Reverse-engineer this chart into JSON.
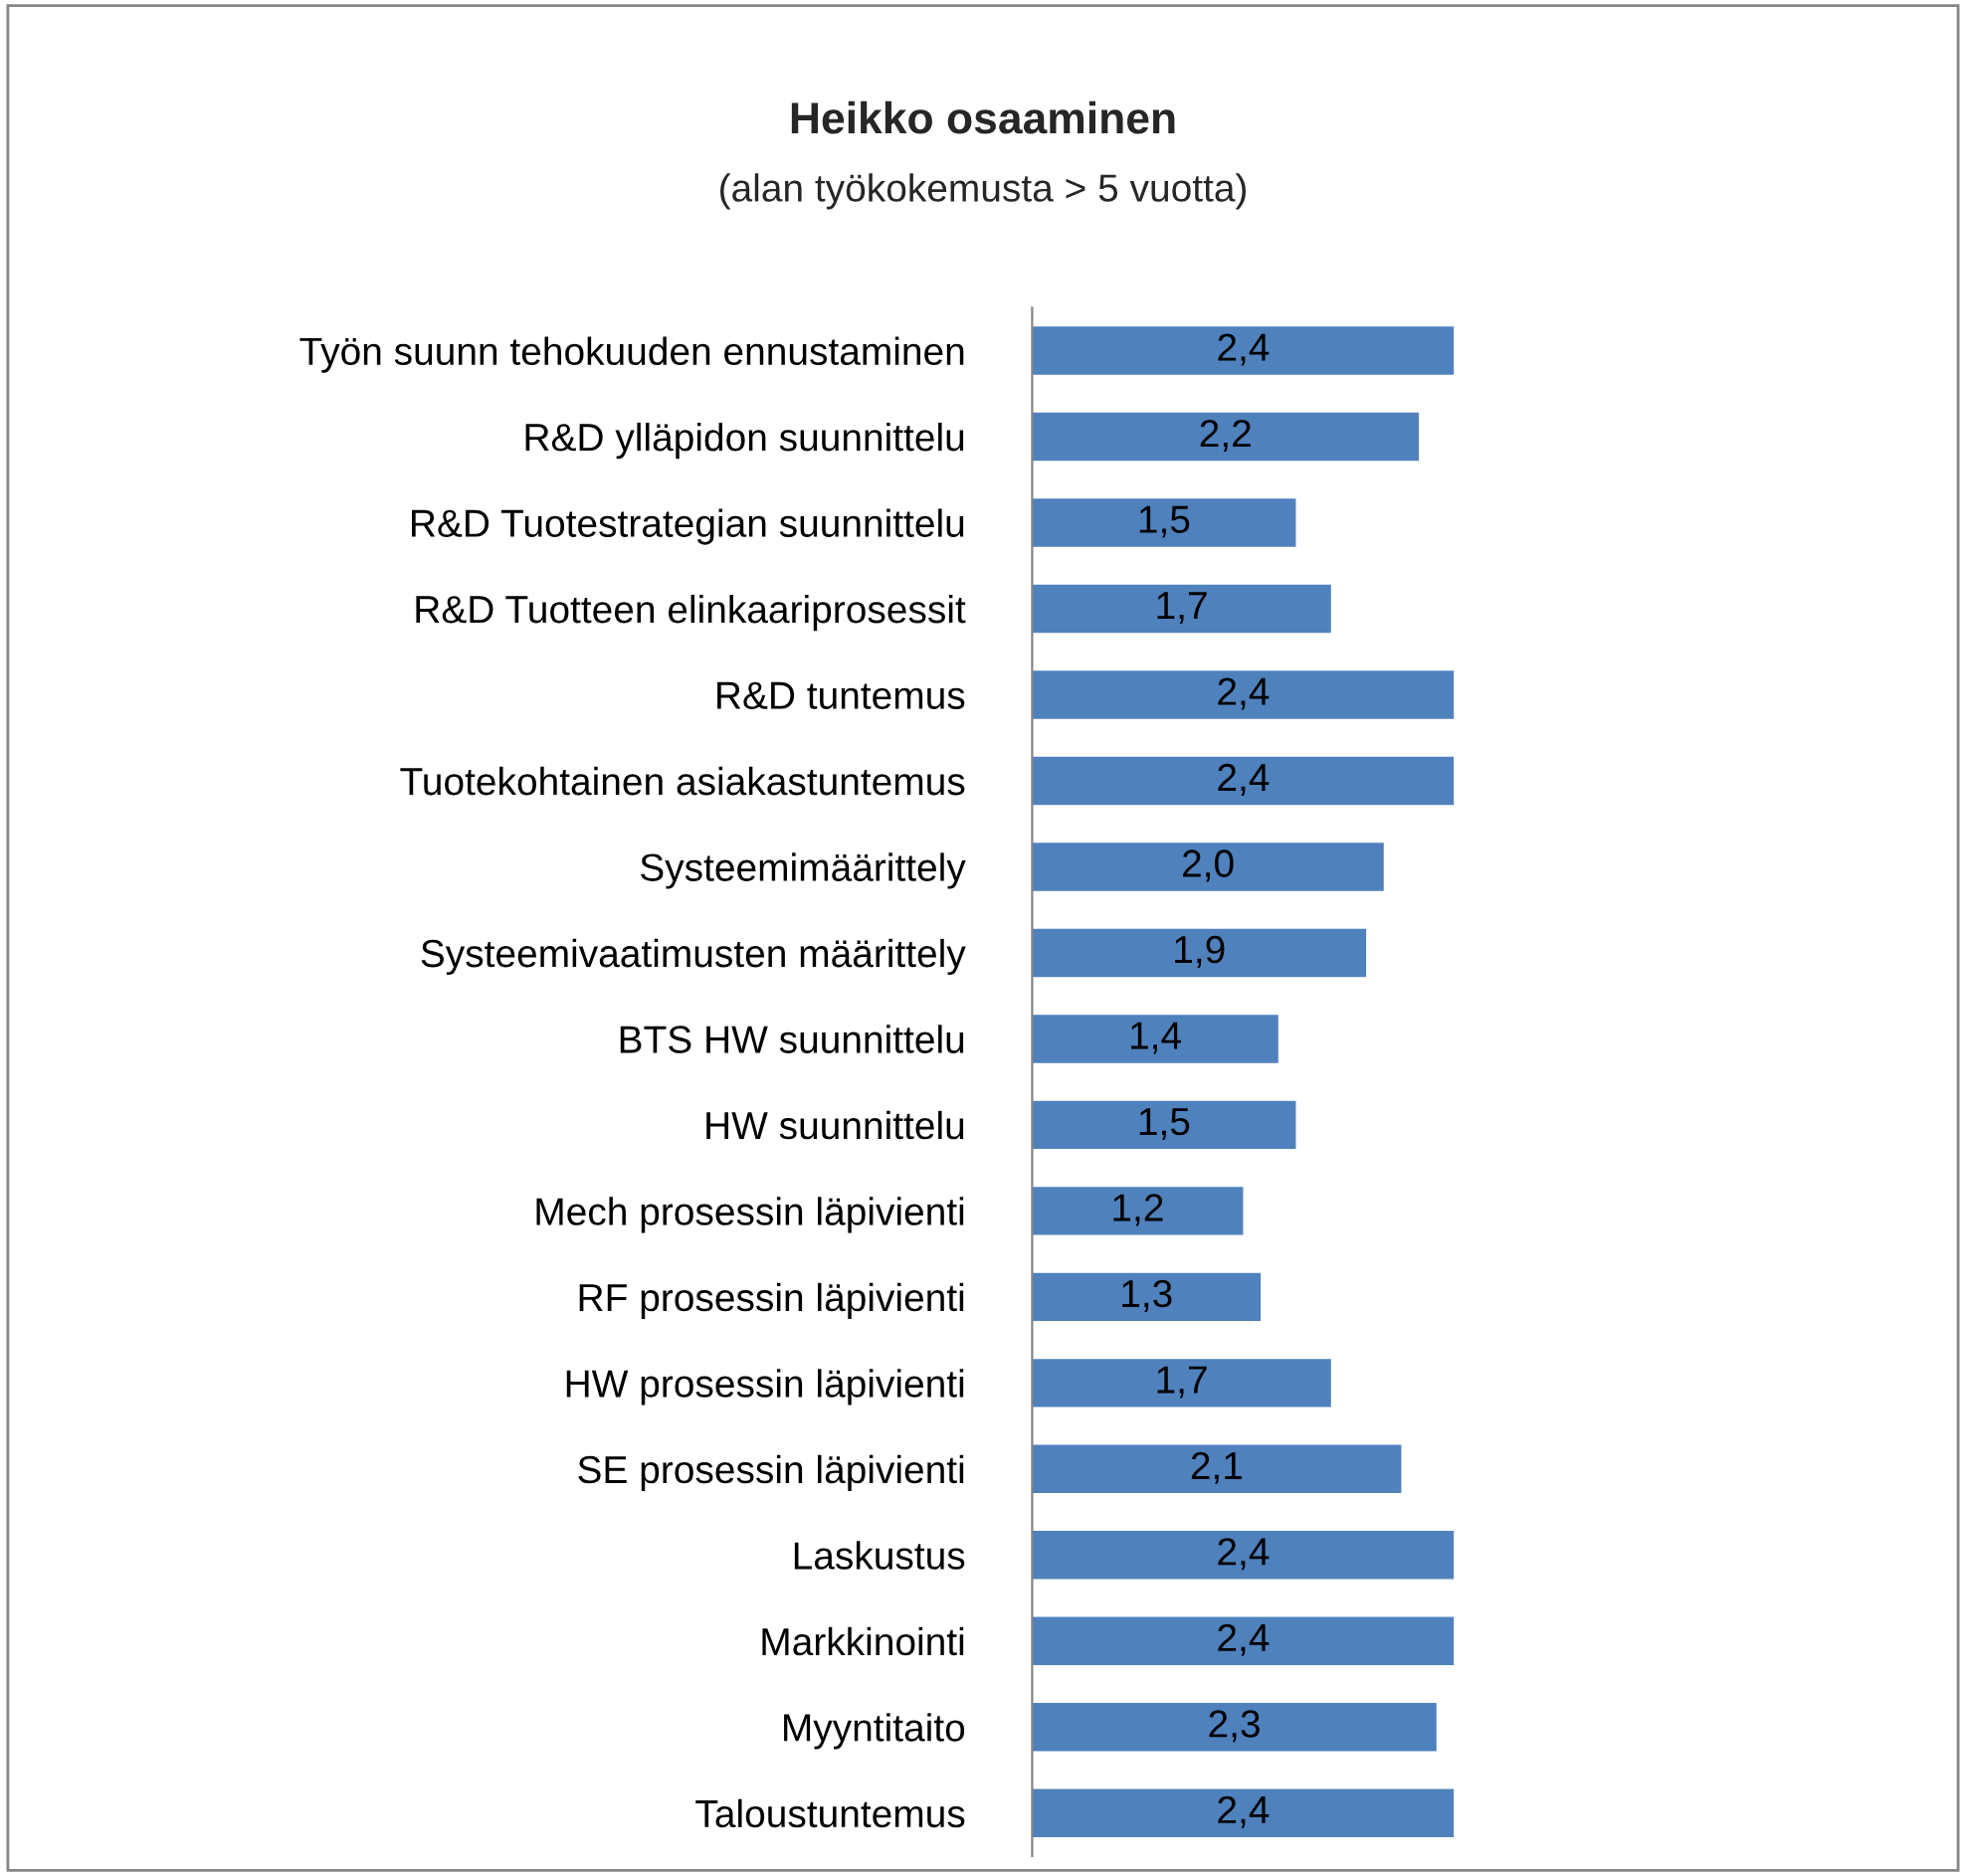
{
  "chart_data": {
    "type": "bar",
    "orientation": "horizontal",
    "title": "Heikko osaaminen",
    "subtitle": "(alan työkokemusta > 5 vuotta)",
    "categories": [
      "Työn suunn tehokuuden ennustaminen",
      "R&D ylläpidon suunnittelu",
      "R&D Tuotestrategian suunnittelu",
      "R&D Tuotteen elinkaariprosessit",
      "R&D tuntemus",
      "Tuotekohtainen asiakastuntemus",
      "Systeemimäärittely",
      "Systeemivaatimusten määrittely",
      "BTS HW suunnittelu",
      "HW suunnittelu",
      "Mech prosessin läpivienti",
      "RF prosessin läpivienti",
      "HW prosessin läpivienti",
      "SE prosessin läpivienti",
      "Laskustus",
      "Markkinointi",
      "Myyntitaito",
      "Taloustuntemus"
    ],
    "values": [
      2.4,
      2.2,
      1.5,
      1.7,
      2.4,
      2.4,
      2.0,
      1.9,
      1.4,
      1.5,
      1.2,
      1.3,
      1.7,
      2.1,
      2.4,
      2.4,
      2.3,
      2.4
    ],
    "value_labels": [
      "2,4",
      "2,2",
      "1,5",
      "1,7",
      "2,4",
      "2,4",
      "2,0",
      "1,9",
      "1,4",
      "1,5",
      "1,2",
      "1,3",
      "1,7",
      "2,1",
      "2,4",
      "2,4",
      "2,3",
      "2,4"
    ],
    "color": "#4f81bd",
    "xlim": [
      0,
      2.4
    ],
    "tick_labels": "y",
    "grid": false,
    "legend": false
  }
}
